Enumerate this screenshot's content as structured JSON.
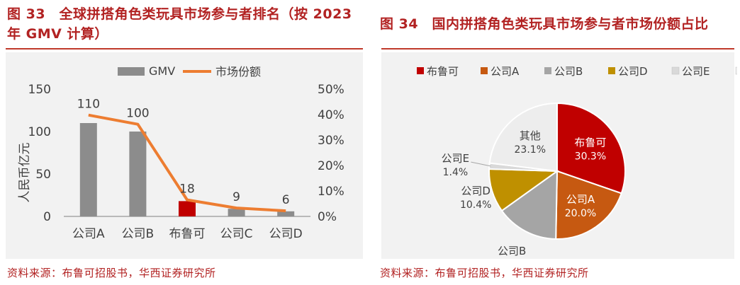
{
  "left": {
    "title_line1": "图 33　全球拼搭角色类玩具市场参与者排名（按 2023",
    "title_line2": "年 GMV 计算）",
    "source": "资料来源：布鲁可招股书，华西证券研究所",
    "legend": {
      "bar": "GMV",
      "line": "市场份额"
    },
    "ylabel": "人民币亿元"
  },
  "right": {
    "title": "图 34　国内拼搭角色类玩具市场参与者市场份额占比",
    "source": "资料来源：布鲁可招股书，华西证券研究所"
  },
  "chart_data": [
    {
      "type": "bar",
      "categories": [
        "公司A",
        "公司B",
        "布鲁可",
        "公司C",
        "公司D"
      ],
      "series": [
        {
          "name": "GMV",
          "type": "bar",
          "axis": "left",
          "values": [
            110,
            100,
            18,
            9,
            6
          ]
        },
        {
          "name": "市场份额",
          "type": "line",
          "axis": "right",
          "values": [
            39.8,
            36.2,
            6.5,
            3.3,
            2.2
          ]
        }
      ],
      "data_labels": [
        "110",
        "100",
        "18",
        "9",
        "6"
      ],
      "highlight_category": "布鲁可",
      "ylabel": "人民币亿元",
      "ylim": [
        0,
        150
      ],
      "yticks": [
        "0",
        "50",
        "100",
        "150"
      ],
      "y2lim": [
        0,
        50
      ],
      "y2ticks": [
        "0%",
        "10%",
        "20%",
        "30%",
        "40%",
        "50%"
      ],
      "legend_position": "top",
      "colors": {
        "bar": "#8c8c8c",
        "highlight": "#c00000",
        "line": "#ed7d31"
      }
    },
    {
      "type": "pie",
      "labels": [
        "布鲁可",
        "公司A",
        "公司B",
        "公司D",
        "公司E",
        "其他"
      ],
      "values": [
        30.3,
        20.0,
        14.8,
        10.4,
        1.4,
        23.1
      ],
      "value_labels": [
        "30.3%",
        "20.0%",
        "14.8%",
        "10.4%",
        "1.4%",
        "23.1%"
      ],
      "colors": [
        "#c00000",
        "#c65911",
        "#a5a5a5",
        "#bf9000",
        "#d9d9d9",
        "#ededed"
      ],
      "legend_position": "top"
    }
  ]
}
